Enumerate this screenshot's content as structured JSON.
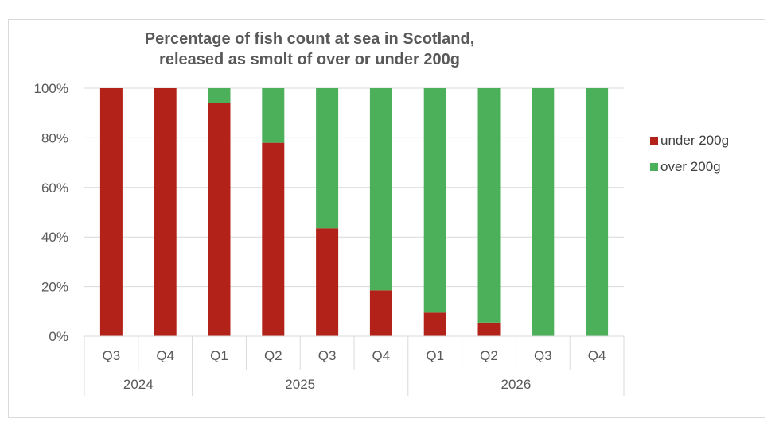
{
  "chart_data": {
    "type": "bar",
    "stacked": true,
    "percent": true,
    "title": "Percentage of fish count at sea in Scotland,",
    "subtitle": "released as smolt of over or under 200g",
    "xlabel": "",
    "ylabel": "",
    "ylim": [
      0,
      100
    ],
    "y_ticks": [
      "0%",
      "20%",
      "40%",
      "60%",
      "80%",
      "100%"
    ],
    "y_tick_values": [
      0,
      20,
      40,
      60,
      80,
      100
    ],
    "grid": true,
    "legend_position": "right",
    "categories": [
      "Q3",
      "Q4",
      "Q1",
      "Q2",
      "Q3",
      "Q4",
      "Q1",
      "Q2",
      "Q3",
      "Q4"
    ],
    "groups": [
      {
        "label": "2024",
        "count": 2
      },
      {
        "label": "2025",
        "count": 4
      },
      {
        "label": "2026",
        "count": 4
      }
    ],
    "series": [
      {
        "name": "under 200g",
        "color": "#b22218",
        "values": [
          100,
          100,
          94,
          78,
          43.5,
          18.5,
          9.5,
          5.5,
          0,
          0
        ]
      },
      {
        "name": "over 200g",
        "color": "#4caf5a",
        "values": [
          0,
          0,
          6,
          22,
          56.5,
          81.5,
          90.5,
          94.5,
          100,
          100
        ]
      }
    ]
  }
}
